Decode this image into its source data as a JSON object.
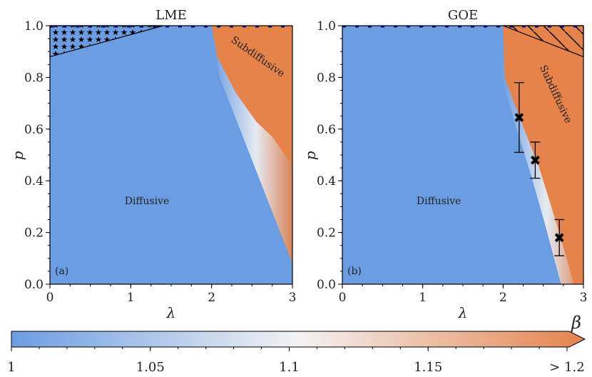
{
  "chart_data": [
    {
      "type": "heatmap",
      "title": "LME",
      "panel_label": "(a)",
      "xlabel": "λ",
      "ylabel": "p",
      "xlim": [
        0,
        3
      ],
      "ylim": [
        0,
        1
      ],
      "xticks": [
        "0",
        "1",
        "2",
        "3"
      ],
      "yticks": [
        "0.0",
        "0.2",
        "0.4",
        "0.6",
        "0.8",
        "1.0"
      ],
      "regions": [
        {
          "label": "Diffusive",
          "at": [
            1.2,
            0.31
          ]
        },
        {
          "label": "Subdiffusive",
          "at": [
            2.55,
            0.87
          ],
          "rotate": 35
        }
      ],
      "subdiffusive_boundary": [
        [
          2.0,
          1.0
        ],
        [
          2.07,
          0.88
        ],
        [
          2.3,
          0.74
        ],
        [
          2.55,
          0.63
        ],
        [
          2.75,
          0.57
        ],
        [
          3.0,
          0.46
        ]
      ],
      "crossover_edge": [
        [
          2.0,
          1.0
        ],
        [
          2.1,
          0.8
        ],
        [
          2.35,
          0.6
        ],
        [
          2.6,
          0.4
        ],
        [
          2.85,
          0.2
        ],
        [
          3.0,
          0.08
        ]
      ],
      "hatched_region": {
        "pattern": "stars",
        "polygon": [
          [
            0,
            1
          ],
          [
            1.4,
            1
          ],
          [
            0,
            0.88
          ]
        ]
      }
    },
    {
      "type": "heatmap",
      "title": "GOE",
      "panel_label": "(b)",
      "xlabel": "λ",
      "ylabel": "p",
      "xlim": [
        0,
        3
      ],
      "ylim": [
        0,
        1
      ],
      "xticks": [
        "0",
        "1",
        "2",
        "3"
      ],
      "yticks": [
        "0.0",
        "0.2",
        "0.4",
        "0.6",
        "0.8",
        "1.0"
      ],
      "regions": [
        {
          "label": "Diffusive",
          "at": [
            1.2,
            0.31
          ]
        },
        {
          "label": "Subdiffusive",
          "at": [
            2.62,
            0.73
          ],
          "rotate": 65
        }
      ],
      "subdiffusive_boundary": [
        [
          2.0,
          1.0
        ],
        [
          2.02,
          0.8
        ],
        [
          2.2,
          0.65
        ],
        [
          2.45,
          0.45
        ],
        [
          2.7,
          0.2
        ],
        [
          2.88,
          0.0
        ]
      ],
      "crossover_edge": [
        [
          1.98,
          1.0
        ],
        [
          1.98,
          0.8
        ],
        [
          2.15,
          0.62
        ],
        [
          2.35,
          0.42
        ],
        [
          2.55,
          0.2
        ],
        [
          2.72,
          0.0
        ]
      ],
      "hatched_region": {
        "pattern": "diagonal",
        "polygon": [
          [
            2.0,
            1
          ],
          [
            3.0,
            1
          ],
          [
            3.0,
            0.88
          ]
        ]
      },
      "points": [
        {
          "x": 2.2,
          "y": 0.645,
          "ylow": 0.51,
          "yhigh": 0.78
        },
        {
          "x": 2.4,
          "y": 0.48,
          "ylow": 0.41,
          "yhigh": 0.55
        },
        {
          "x": 2.7,
          "y": 0.18,
          "ylow": 0.11,
          "yhigh": 0.25
        }
      ]
    }
  ],
  "colorbar": {
    "label": "β",
    "ticks": [
      {
        "v": 1.0,
        "label": "1"
      },
      {
        "v": 1.05,
        "label": "1.05"
      },
      {
        "v": 1.1,
        "label": "1.1"
      },
      {
        "v": 1.15,
        "label": "1.15"
      },
      {
        "v": 1.2,
        "label": "> 1.2"
      }
    ],
    "range": [
      1.0,
      1.2
    ],
    "colors": {
      "low": "#6b9de3",
      "mid": "#f3f3f3",
      "high": "#e5834b"
    }
  }
}
